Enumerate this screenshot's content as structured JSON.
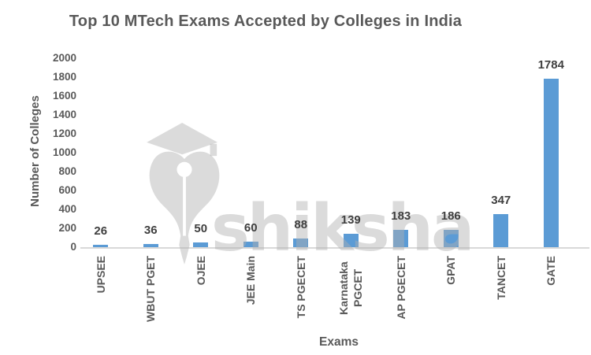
{
  "title": "Top 10 MTech Exams Accepted by Colleges in India",
  "watermark": {
    "text": "shiksha",
    "logo": "shiksha-pen-nib-with-graduation-cap"
  },
  "chart_data": {
    "type": "bar",
    "title": "Top 10 MTech Exams Accepted by Colleges in India",
    "categories": [
      "UPSEE",
      "WBUT PGET",
      "OJEE",
      "JEE Main",
      "TS PGECET",
      "Karnataka PGCET",
      "AP PGECET",
      "GPAT",
      "TANCET",
      "GATE"
    ],
    "values": [
      26,
      36,
      50,
      60,
      88,
      139,
      183,
      186,
      347,
      1784
    ],
    "xlabel": "Exams",
    "ylabel": "Number of Colleges",
    "ylim": [
      0,
      2000
    ],
    "yticks": [
      0,
      200,
      400,
      600,
      800,
      1000,
      1200,
      1400,
      1600,
      1800,
      2000
    ],
    "data_labels_shown": true,
    "grid": false,
    "legend": false
  },
  "colors": {
    "bar": "#5B9BD5",
    "title_text": "#595959",
    "axis_text": "#595959",
    "data_label_text": "#3F3F3F",
    "axis_line": "#D9D9D9",
    "watermark_gray": "#DBDBDB",
    "background": "#FFFFFF"
  }
}
